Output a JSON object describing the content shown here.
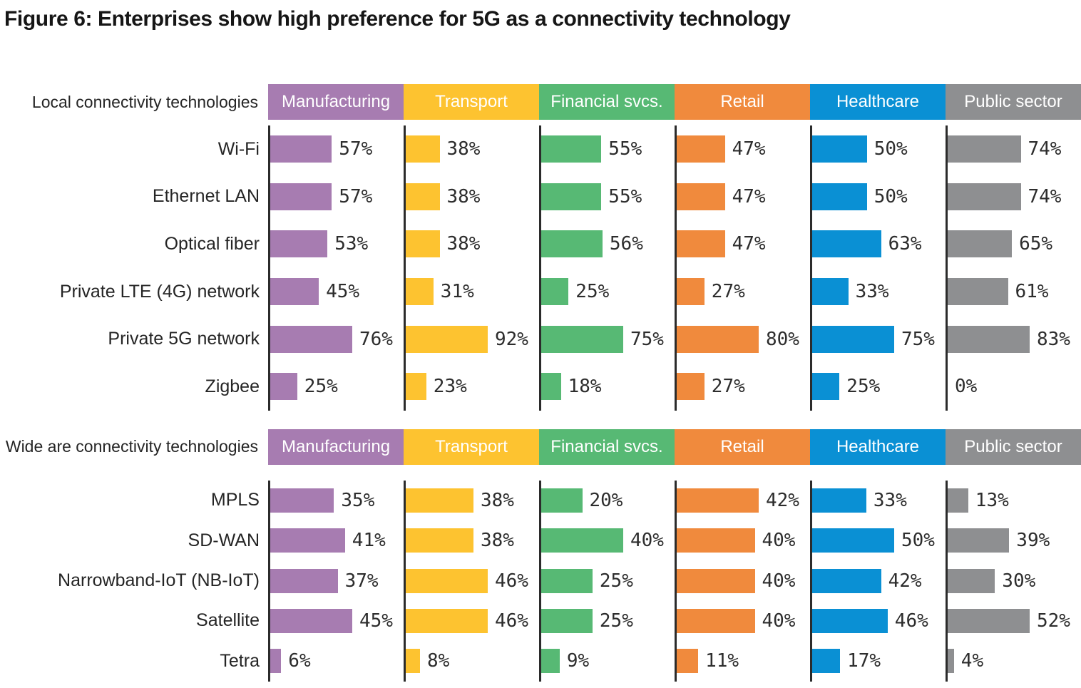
{
  "title": "Figure 6: Enterprises show high preference for 5G as a connectivity technology",
  "colors": {
    "axis": "#2b2b2b",
    "text": "#2d2d2d",
    "header_text": "#ffffff",
    "manufacturing": "#a77cb1",
    "transport": "#fdc330",
    "financial_svcs": "#57b974",
    "retail": "#f08a3d",
    "healthcare": "#0a90d4",
    "public_sector": "#8e8f91"
  },
  "chart_data": [
    {
      "type": "bar",
      "orientation": "horizontal",
      "section_label": "Local connectivity technologies",
      "unit": "%",
      "xlim": [
        0,
        100
      ],
      "categories": [
        "Wi-Fi",
        "Ethernet LAN",
        "Optical fiber",
        "Private LTE (4G) network",
        "Private 5G network",
        "Zigbee"
      ],
      "series": [
        {
          "name": "Manufacturing",
          "color": "#a77cb1",
          "values": [
            57,
            57,
            53,
            45,
            76,
            25
          ]
        },
        {
          "name": "Transport",
          "color": "#fdc330",
          "values": [
            38,
            38,
            38,
            31,
            92,
            23
          ]
        },
        {
          "name": "Financial svcs.",
          "color": "#57b974",
          "values": [
            55,
            55,
            56,
            25,
            75,
            18
          ]
        },
        {
          "name": "Retail",
          "color": "#f08a3d",
          "values": [
            47,
            47,
            47,
            27,
            80,
            27
          ]
        },
        {
          "name": "Healthcare",
          "color": "#0a90d4",
          "values": [
            50,
            50,
            63,
            33,
            75,
            25
          ]
        },
        {
          "name": "Public sector",
          "color": "#8e8f91",
          "values": [
            74,
            74,
            65,
            61,
            83,
            0
          ]
        }
      ]
    },
    {
      "type": "bar",
      "orientation": "horizontal",
      "section_label": "Wide are connectivity technologies",
      "unit": "%",
      "xlim": [
        0,
        100
      ],
      "categories": [
        "MPLS",
        "SD-WAN",
        "Narrowband-IoT (NB-IoT)",
        "Satellite",
        "Tetra"
      ],
      "series": [
        {
          "name": "Manufacturing",
          "color": "#a77cb1",
          "values": [
            35,
            41,
            37,
            45,
            6
          ]
        },
        {
          "name": "Transport",
          "color": "#fdc330",
          "values": [
            38,
            38,
            46,
            46,
            8
          ]
        },
        {
          "name": "Financial svcs.",
          "color": "#57b974",
          "values": [
            20,
            40,
            25,
            25,
            9
          ]
        },
        {
          "name": "Retail",
          "color": "#f08a3d",
          "values": [
            42,
            40,
            40,
            40,
            11
          ]
        },
        {
          "name": "Healthcare",
          "color": "#0a90d4",
          "values": [
            33,
            50,
            42,
            46,
            17
          ]
        },
        {
          "name": "Public sector",
          "color": "#8e8f91",
          "values": [
            13,
            39,
            30,
            52,
            4
          ]
        }
      ]
    }
  ]
}
